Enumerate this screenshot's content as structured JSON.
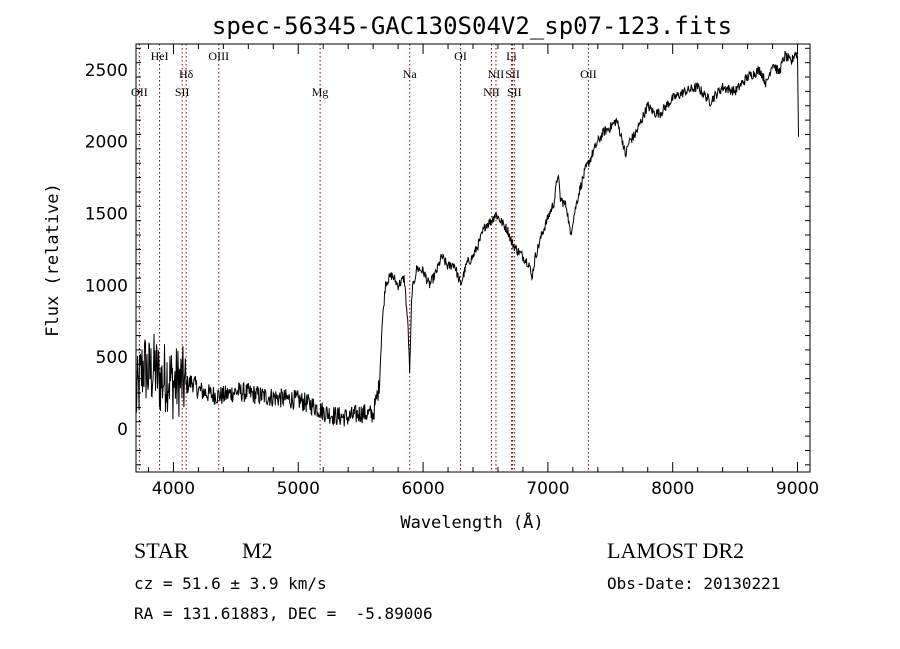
{
  "chart_data": {
    "type": "line",
    "title": "spec-56345-GAC130S04V2_sp07-123.fits",
    "xlabel": "Wavelength (Å)",
    "ylabel": "Flux (relative)",
    "xlim": [
      3700,
      9100
    ],
    "ylim": [
      -300,
      2680
    ],
    "xticks": [
      4000,
      5000,
      6000,
      7000,
      8000,
      9000
    ],
    "yticks": [
      0,
      500,
      1000,
      1500,
      2000,
      2500
    ],
    "line_color": "#000000",
    "marker_color": "#8b0000",
    "lines": [
      {
        "label": "OII",
        "x": 3727,
        "row": 2
      },
      {
        "label": "HeI",
        "x": 3889,
        "row": 0
      },
      {
        "label": "SII",
        "x": 4070,
        "row": 2
      },
      {
        "label": "Hδ",
        "x": 4102,
        "row": 1
      },
      {
        "label": "OIII",
        "x": 4363,
        "row": 0
      },
      {
        "label": "Mg",
        "x": 5175,
        "row": 2
      },
      {
        "label": "Na",
        "x": 5893,
        "row": 1
      },
      {
        "label": "OI",
        "x": 6300,
        "row": 0
      },
      {
        "label": "NII",
        "x": 6548,
        "row": 2
      },
      {
        "label": "NII",
        "x": 6584,
        "row": 1
      },
      {
        "label": "Li",
        "x": 6708,
        "row": 0
      },
      {
        "label": "SII",
        "x": 6717,
        "row": 1
      },
      {
        "label": "SII",
        "x": 6731,
        "row": 2
      },
      {
        "label": "OII",
        "x": 7325,
        "row": 1
      }
    ],
    "series": [
      {
        "x": [
          3700,
          3760,
          3800,
          3850,
          3900,
          3950,
          4000,
          4050,
          4100,
          4150,
          4200,
          4300,
          4400,
          4500,
          4600,
          4700,
          4800,
          4900,
          5000,
          5100,
          5200,
          5300,
          5400,
          5500,
          5600,
          5650,
          5670,
          5700,
          5750,
          5800,
          5850,
          5880,
          5893,
          5910,
          5950,
          6000,
          6050,
          6100,
          6150,
          6200,
          6250,
          6300,
          6350,
          6400,
          6450,
          6500,
          6550,
          6580,
          6620,
          6680,
          6710,
          6750,
          6800,
          6850,
          6870,
          6900,
          6950,
          7000,
          7050,
          7080,
          7100,
          7150,
          7180,
          7200,
          7250,
          7300,
          7350,
          7400,
          7450,
          7500,
          7550,
          7600,
          7620,
          7650,
          7700,
          7750,
          7800,
          7850,
          7900,
          7950,
          8000,
          8100,
          8200,
          8300,
          8400,
          8500,
          8600,
          8700,
          8750,
          8800,
          8850,
          8900,
          8950,
          8980,
          9000,
          9010
        ],
        "values": [
          200,
          450,
          380,
          420,
          330,
          380,
          310,
          340,
          300,
          330,
          270,
          240,
          230,
          260,
          250,
          230,
          220,
          210,
          200,
          170,
          120,
          90,
          80,
          110,
          100,
          300,
          700,
          1020,
          1070,
          1000,
          1050,
          700,
          380,
          950,
          1120,
          1100,
          1000,
          1080,
          1200,
          1130,
          1150,
          1000,
          1150,
          1200,
          1300,
          1420,
          1450,
          1500,
          1450,
          1380,
          1300,
          1250,
          1200,
          1150,
          1050,
          1200,
          1350,
          1470,
          1580,
          1780,
          1600,
          1550,
          1350,
          1450,
          1650,
          1800,
          1900,
          2000,
          2070,
          2100,
          2150,
          2000,
          1900,
          2000,
          2050,
          2150,
          2250,
          2200,
          2200,
          2250,
          2300,
          2350,
          2380,
          2280,
          2380,
          2350,
          2450,
          2500,
          2400,
          2550,
          2480,
          2600,
          2550,
          2620,
          2600,
          1900
        ]
      }
    ]
  },
  "info": {
    "object_type": "STAR",
    "subclass": "M2",
    "survey": "LAMOST DR2",
    "redshift": "cz = 51.6 ± 3.9 km/s",
    "obs_date": "Obs-Date: 20130221",
    "coords": "RA = 131.61883, DEC =  -5.89006"
  }
}
